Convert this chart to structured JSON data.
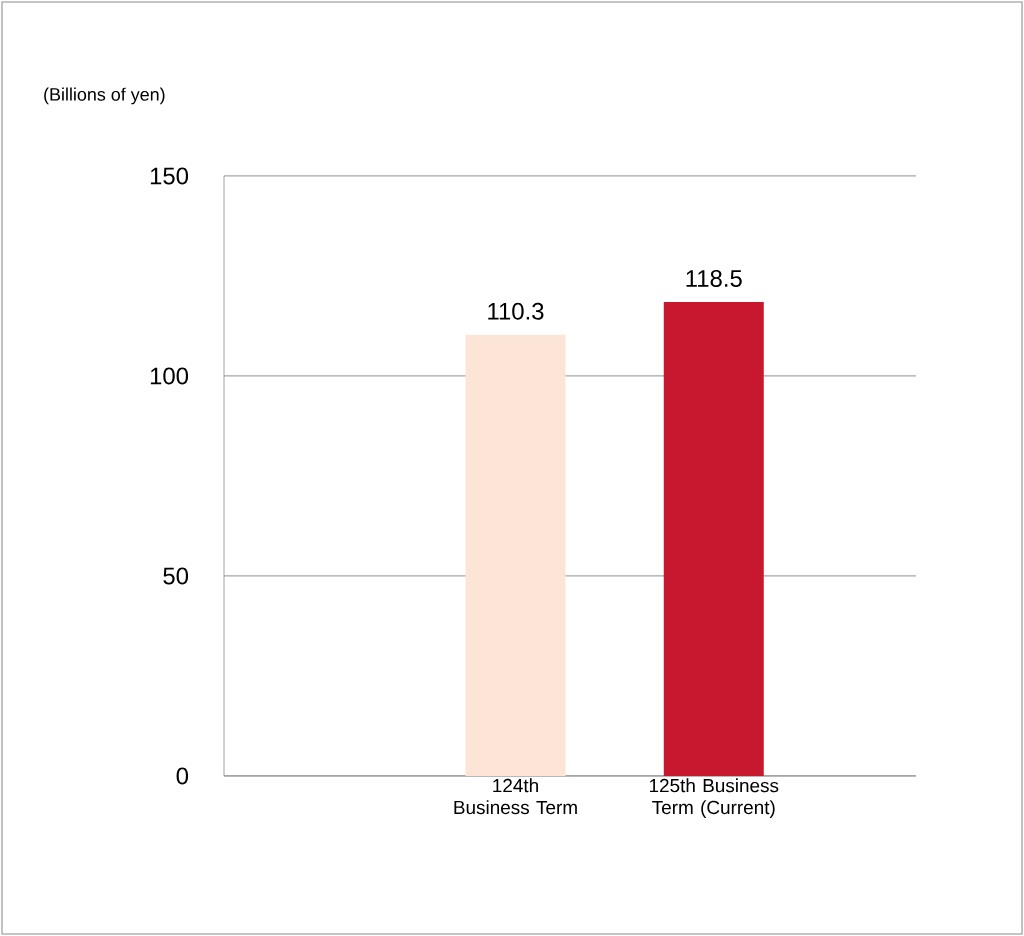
{
  "chart_data": {
    "type": "bar",
    "ylabel": "(Billions of yen)",
    "categories": [
      "124th Business Term",
      "125th Business Term (Current)"
    ],
    "values": [
      110.3,
      118.5
    ],
    "colors": [
      "#fce4d6",
      "#c8182f"
    ],
    "value_labels": [
      "110.3",
      "118.5"
    ],
    "ylim": [
      0,
      150
    ],
    "yticks": [
      0,
      50,
      100,
      150
    ],
    "grid": "y"
  }
}
